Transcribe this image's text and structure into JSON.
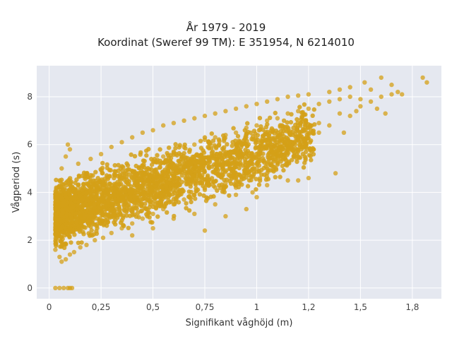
{
  "chart_data": {
    "type": "scatter",
    "title": "År 1979 - 2019",
    "subtitle": "Koordinat (Sweref 99 TM): E 351954, N 6214010",
    "xlabel": "Signifikant våghöjd (m)",
    "ylabel": "Vågperiod (s)",
    "xlim": [
      -0.06,
      1.89
    ],
    "ylim": [
      -0.45,
      9.3
    ],
    "x_ticks": [
      0,
      0.25,
      0.5,
      0.75,
      1,
      1.25,
      1.5,
      1.75
    ],
    "x_tick_labels": [
      "0",
      "0,25",
      "0,5",
      "0,75",
      "1",
      "1,2",
      "1,5",
      "1,8"
    ],
    "y_ticks": [
      0,
      2,
      4,
      6,
      8
    ],
    "y_tick_labels": [
      "0",
      "2",
      "4",
      "6",
      "8"
    ],
    "grid": true,
    "legend": "none",
    "marker_color": "#d4a017",
    "plot_background": "#e5e8f0",
    "series": [
      {
        "points": [
          [
            0.03,
            0
          ],
          [
            0.05,
            0
          ],
          [
            0.07,
            0
          ],
          [
            0.09,
            0
          ],
          [
            0.1,
            0
          ],
          [
            0.11,
            0
          ],
          [
            0.03,
            1.6
          ],
          [
            0.05,
            1.3
          ],
          [
            0.06,
            1.1
          ],
          [
            0.08,
            1.2
          ],
          [
            0.1,
            1.4
          ],
          [
            0.12,
            1.5
          ],
          [
            0.15,
            1.7
          ],
          [
            0.18,
            1.8
          ],
          [
            0.22,
            2.0
          ],
          [
            0.26,
            2.1
          ],
          [
            0.3,
            2.3
          ],
          [
            0.35,
            2.5
          ],
          [
            0.4,
            2.7
          ],
          [
            0.45,
            2.9
          ],
          [
            0.5,
            3.1
          ],
          [
            0.55,
            3.3
          ],
          [
            0.6,
            3.5
          ],
          [
            0.65,
            3.7
          ],
          [
            0.7,
            3.9
          ],
          [
            0.75,
            4.1
          ],
          [
            0.8,
            4.2
          ],
          [
            0.85,
            4.4
          ],
          [
            0.9,
            4.6
          ],
          [
            0.95,
            4.8
          ],
          [
            1.0,
            5.0
          ],
          [
            0.04,
            2.5
          ],
          [
            0.04,
            3.5
          ],
          [
            0.05,
            4.5
          ],
          [
            0.06,
            5.0
          ],
          [
            0.08,
            5.5
          ],
          [
            0.1,
            5.8
          ],
          [
            0.09,
            6.0
          ],
          [
            0.12,
            4.0
          ],
          [
            0.15,
            3.0
          ],
          [
            0.14,
            5.2
          ],
          [
            0.2,
            5.4
          ],
          [
            0.25,
            5.6
          ],
          [
            0.3,
            5.9
          ],
          [
            0.35,
            6.1
          ],
          [
            0.4,
            6.3
          ],
          [
            0.45,
            6.5
          ],
          [
            0.5,
            6.6
          ],
          [
            0.55,
            6.8
          ],
          [
            0.6,
            6.9
          ],
          [
            0.65,
            7.0
          ],
          [
            0.7,
            7.1
          ],
          [
            0.75,
            7.2
          ],
          [
            0.8,
            7.3
          ],
          [
            0.85,
            7.4
          ],
          [
            0.9,
            7.5
          ],
          [
            0.95,
            7.6
          ],
          [
            1.0,
            7.7
          ],
          [
            1.05,
            7.8
          ],
          [
            1.1,
            7.9
          ],
          [
            1.15,
            8.0
          ],
          [
            1.2,
            8.05
          ],
          [
            1.25,
            8.1
          ],
          [
            0.2,
            3.5
          ],
          [
            0.25,
            4.0
          ],
          [
            0.3,
            4.3
          ],
          [
            0.35,
            4.6
          ],
          [
            0.4,
            4.9
          ],
          [
            0.45,
            5.1
          ],
          [
            0.5,
            5.3
          ],
          [
            0.55,
            5.5
          ],
          [
            0.6,
            5.7
          ],
          [
            0.65,
            5.9
          ],
          [
            0.7,
            6.0
          ],
          [
            0.75,
            6.2
          ],
          [
            0.8,
            6.3
          ],
          [
            0.85,
            6.4
          ],
          [
            0.9,
            6.5
          ],
          [
            0.95,
            6.7
          ],
          [
            1.0,
            6.8
          ],
          [
            1.05,
            7.0
          ],
          [
            1.1,
            7.1
          ],
          [
            1.15,
            7.3
          ],
          [
            1.2,
            7.4
          ],
          [
            1.25,
            7.5
          ],
          [
            1.3,
            7.7
          ],
          [
            1.35,
            7.8
          ],
          [
            1.4,
            7.9
          ],
          [
            1.45,
            8.0
          ],
          [
            0.1,
            2.5
          ],
          [
            0.15,
            2.8
          ],
          [
            0.2,
            2.9
          ],
          [
            0.25,
            3.2
          ],
          [
            0.3,
            3.5
          ],
          [
            0.35,
            3.8
          ],
          [
            0.4,
            4.0
          ],
          [
            0.45,
            4.2
          ],
          [
            0.5,
            4.4
          ],
          [
            0.55,
            4.5
          ],
          [
            0.6,
            4.7
          ],
          [
            0.65,
            4.9
          ],
          [
            0.7,
            5.0
          ],
          [
            0.75,
            5.2
          ],
          [
            0.8,
            5.4
          ],
          [
            0.85,
            5.6
          ],
          [
            0.9,
            5.8
          ],
          [
            0.95,
            6.0
          ],
          [
            1.0,
            6.1
          ],
          [
            1.05,
            6.2
          ],
          [
            1.1,
            6.4
          ],
          [
            1.15,
            6.6
          ],
          [
            1.2,
            6.8
          ],
          [
            0.4,
            2.2
          ],
          [
            0.5,
            2.5
          ],
          [
            0.6,
            2.9
          ],
          [
            0.7,
            3.1
          ],
          [
            0.8,
            3.5
          ],
          [
            0.9,
            3.9
          ],
          [
            0.98,
            4.0
          ],
          [
            1.05,
            4.3
          ],
          [
            1.15,
            4.5
          ],
          [
            1.25,
            4.6
          ],
          [
            0.85,
            3.0
          ],
          [
            0.75,
            2.4
          ],
          [
            0.95,
            3.3
          ],
          [
            1.3,
            6.9
          ],
          [
            1.35,
            6.8
          ],
          [
            1.4,
            7.3
          ],
          [
            1.45,
            7.2
          ],
          [
            1.5,
            7.6
          ],
          [
            1.55,
            7.8
          ],
          [
            1.6,
            8.0
          ],
          [
            1.65,
            8.1
          ],
          [
            1.7,
            8.1
          ],
          [
            1.8,
            8.8
          ],
          [
            1.82,
            8.6
          ],
          [
            1.6,
            8.8
          ],
          [
            1.65,
            8.5
          ],
          [
            1.55,
            8.3
          ],
          [
            1.5,
            7.9
          ],
          [
            1.45,
            8.4
          ],
          [
            1.4,
            8.3
          ],
          [
            1.35,
            8.2
          ],
          [
            1.62,
            7.3
          ],
          [
            1.58,
            7.5
          ],
          [
            1.42,
            6.5
          ],
          [
            1.38,
            4.8
          ],
          [
            1.52,
            8.6
          ],
          [
            1.48,
            7.4
          ],
          [
            1.68,
            8.2
          ],
          [
            1.15,
            6.0
          ],
          [
            1.2,
            5.7
          ],
          [
            1.3,
            6.5
          ],
          [
            1.1,
            5.5
          ],
          [
            1.05,
            5.2
          ],
          [
            0.9,
            4.2
          ],
          [
            1.2,
            4.5
          ],
          [
            1.0,
            3.8
          ]
        ]
      }
    ]
  }
}
